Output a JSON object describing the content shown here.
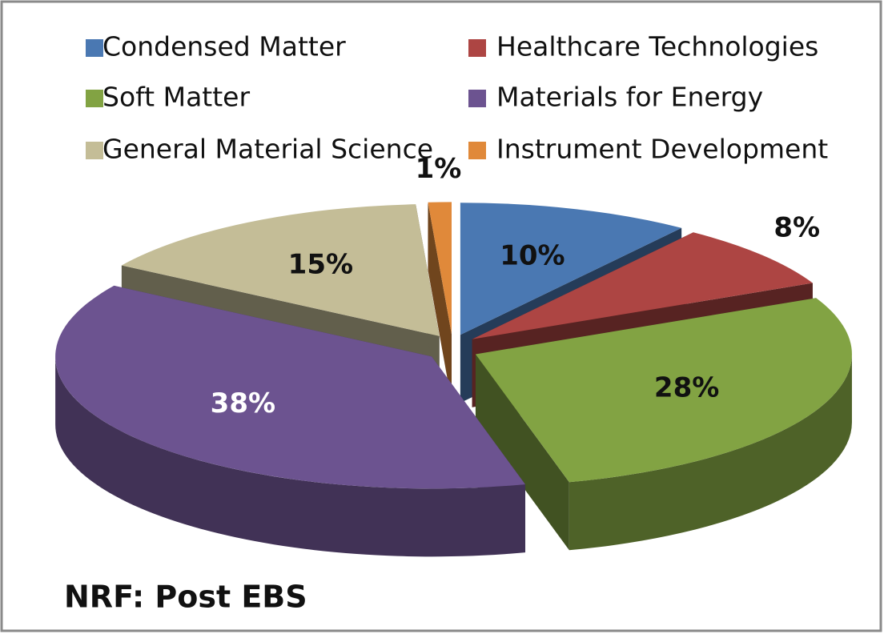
{
  "chart_data": {
    "type": "pie3d",
    "title": "NRF: Post EBS",
    "categories": [
      "Condensed Matter",
      "Healthcare Technologies",
      "Soft Matter",
      "Materials for Energy",
      "General Material Science",
      "Instrument Development"
    ],
    "values": [
      10,
      8,
      28,
      38,
      15,
      1
    ],
    "value_labels": [
      "10%",
      "8%",
      "28%",
      "38%",
      "15%",
      "1%"
    ],
    "colors": [
      "#4a78b2",
      "#ad4543",
      "#82a343",
      "#6c5390",
      "#c4bd97",
      "#e0893a"
    ],
    "legend": "top"
  }
}
